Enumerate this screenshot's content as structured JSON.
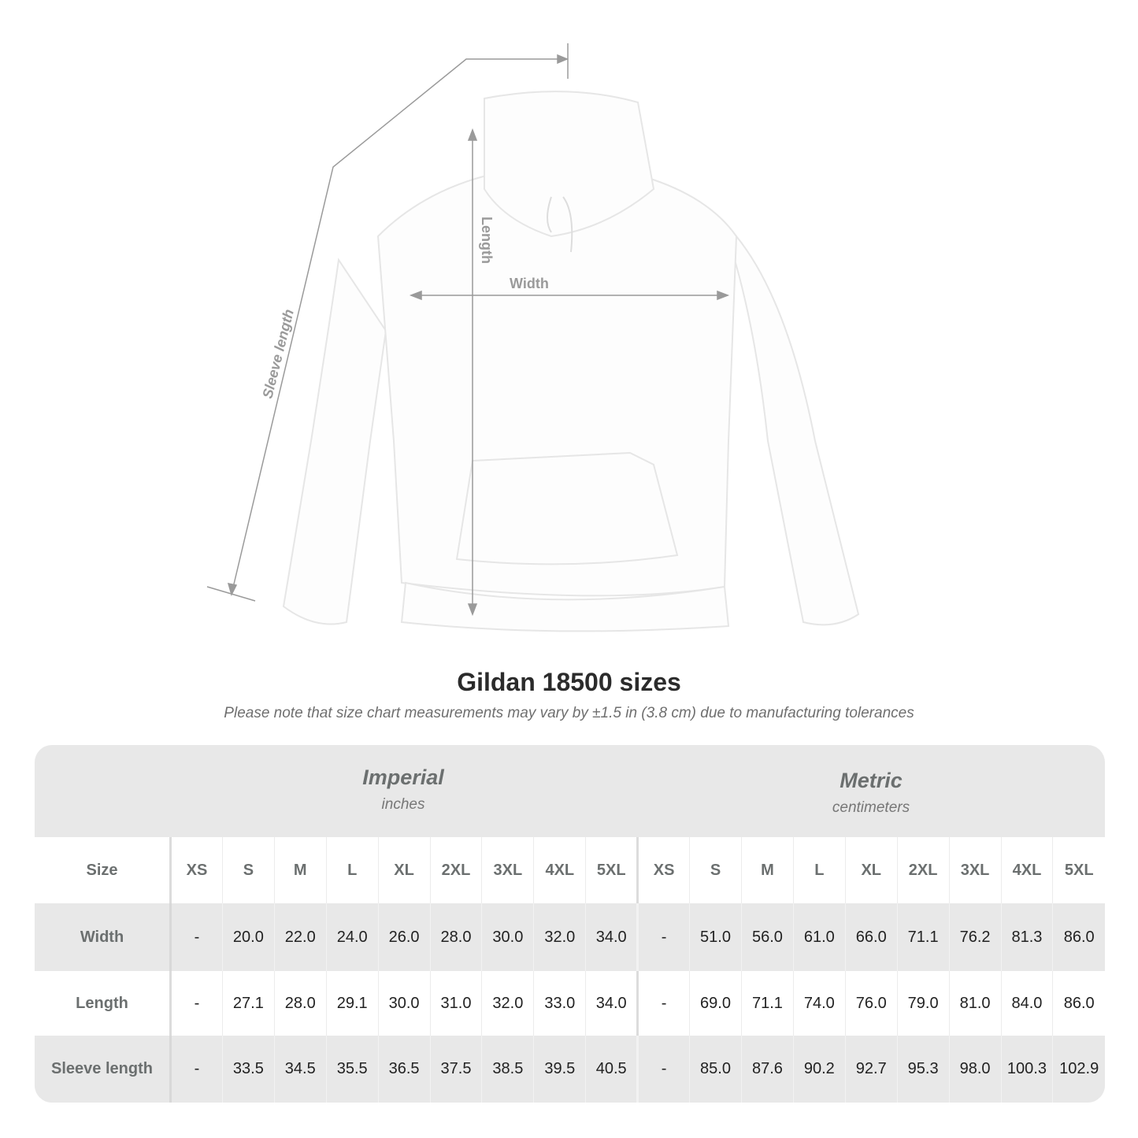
{
  "figure": {
    "labels": {
      "length": "Length",
      "width": "Width",
      "sleeve": "Sleeve length"
    },
    "line_color": "#9a9a9a"
  },
  "title": "Gildan 18500 sizes",
  "subtitle": "Please note that size chart measurements may vary by ±1.5 in (3.8 cm) due to manufacturing tolerances",
  "units": {
    "imperial": {
      "name": "Imperial",
      "sub": "inches"
    },
    "metric": {
      "name": "Metric",
      "sub": "centimeters"
    }
  },
  "table": {
    "size_label": "Size",
    "sizes_imperial": [
      "XS",
      "S",
      "M",
      "L",
      "XL",
      "2XL",
      "3XL",
      "4XL",
      "5XL"
    ],
    "sizes_metric": [
      "XS",
      "S",
      "M",
      "L",
      "XL",
      "2XL",
      "3XL",
      "4XL",
      "5XL"
    ],
    "rows": [
      {
        "label": "Width",
        "imperial": [
          "-",
          "20.0",
          "22.0",
          "24.0",
          "26.0",
          "28.0",
          "30.0",
          "32.0",
          "34.0"
        ],
        "metric": [
          "-",
          "51.0",
          "56.0",
          "61.0",
          "66.0",
          "71.1",
          "76.2",
          "81.3",
          "86.0"
        ]
      },
      {
        "label": "Length",
        "imperial": [
          "-",
          "27.1",
          "28.0",
          "29.1",
          "30.0",
          "31.0",
          "32.0",
          "33.0",
          "34.0"
        ],
        "metric": [
          "-",
          "69.0",
          "71.1",
          "74.0",
          "76.0",
          "79.0",
          "81.0",
          "84.0",
          "86.0"
        ]
      },
      {
        "label": "Sleeve length",
        "imperial": [
          "-",
          "33.5",
          "34.5",
          "35.5",
          "36.5",
          "37.5",
          "38.5",
          "39.5",
          "40.5"
        ],
        "metric": [
          "-",
          "85.0",
          "87.6",
          "90.2",
          "92.7",
          "95.3",
          "98.0",
          "100.3",
          "102.9"
        ]
      }
    ]
  },
  "colors": {
    "header_bg": "#e8e8e8",
    "label_text": "#6b6f6f",
    "title_text": "#2b2b2b"
  }
}
